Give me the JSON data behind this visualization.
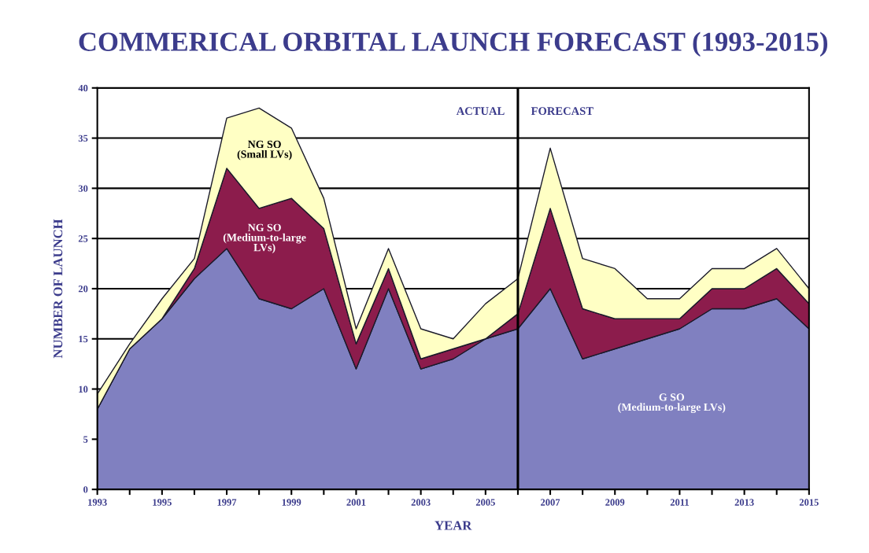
{
  "chart_data": {
    "type": "area",
    "stacked": true,
    "title": "COMMERICAL ORBITAL LAUNCH FORECAST (1993-2015)",
    "xlabel": "YEAR",
    "ylabel": "NUMBER OF LAUNCH",
    "x": [
      1993,
      1994,
      1995,
      1996,
      1997,
      1998,
      1999,
      2000,
      2001,
      2002,
      2003,
      2004,
      2005,
      2006,
      2007,
      2008,
      2009,
      2010,
      2011,
      2012,
      2013,
      2014,
      2015
    ],
    "series": [
      {
        "name": "G SO\n(Medium-to-large LVs)",
        "color": "#8080c0",
        "values": [
          8,
          14,
          17,
          21,
          24,
          19,
          18,
          20,
          12,
          20,
          12,
          13,
          15,
          16,
          20,
          13,
          14,
          15,
          16,
          18,
          18,
          19,
          16
        ]
      },
      {
        "name": "NG SO\n(Medium-to-large\nLVs)",
        "color": "#8c1c4c",
        "values": [
          0,
          0,
          0,
          1,
          8,
          9,
          11,
          6,
          2.5,
          2,
          1,
          1,
          0,
          1.5,
          8,
          5,
          3,
          2,
          1,
          2,
          2,
          3,
          2.5
        ]
      },
      {
        "name": "NG SO\n(Small LVs)",
        "color": "#ffffc4",
        "values": [
          1.5,
          0.5,
          2,
          1,
          5,
          10,
          7,
          3,
          1.5,
          2,
          3,
          1,
          3.5,
          3.5,
          6,
          5,
          5,
          2,
          2,
          2,
          2,
          2,
          1.5
        ]
      }
    ],
    "xlim": [
      1993,
      2015
    ],
    "ylim": [
      0,
      40
    ],
    "xticks": [
      1993,
      {
        "value": 1994,
        "label": null
      },
      1995,
      {
        "value": 1996,
        "label": null
      },
      1997,
      {
        "value": 1998,
        "label": null
      },
      1999,
      {
        "value": 2000,
        "label": null
      },
      2001,
      {
        "value": 2002,
        "label": null
      },
      2003,
      {
        "value": 2004,
        "label": null
      },
      2005,
      {
        "value": 2006,
        "label": null
      },
      2007,
      {
        "value": 2008,
        "label": null
      },
      2009,
      {
        "value": 2010,
        "label": null
      },
      2011,
      {
        "value": 2012,
        "label": null
      },
      2013,
      {
        "value": 2014,
        "label": null
      },
      2015
    ],
    "yticks": [
      0,
      5,
      10,
      15,
      20,
      25,
      30,
      35,
      40
    ],
    "grid": "y",
    "ref_lines": [
      {
        "axis": "x",
        "value": 2006,
        "color": "#000000"
      }
    ],
    "annotations": [
      "ACTUAL",
      "FORECAST"
    ]
  }
}
